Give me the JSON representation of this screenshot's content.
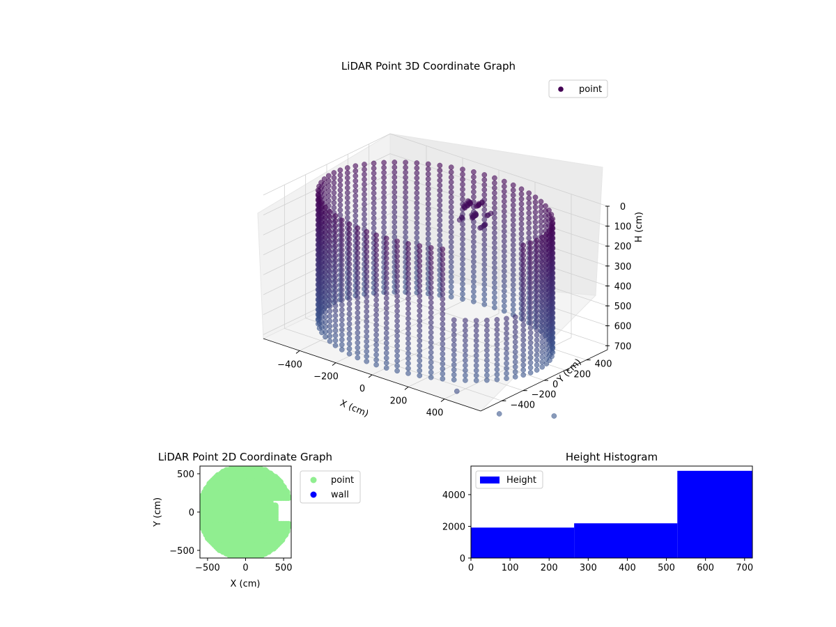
{
  "chart_data": [
    {
      "type": "scatter",
      "projection": "3d",
      "title": "LiDAR Point 3D Coordinate Graph",
      "xlabel": "X (cm)",
      "ylabel": "Y (cm)",
      "zlabel": "H (cm)",
      "xlim": [
        -600,
        600
      ],
      "ylim": [
        -600,
        600
      ],
      "zlim": [
        0,
        720
      ],
      "z_inverted": true,
      "xticks": [
        -400,
        -200,
        0,
        200,
        400
      ],
      "yticks": [
        -400,
        -200,
        0,
        200,
        400
      ],
      "zticks": [
        0,
        100,
        200,
        300,
        400,
        500,
        600,
        700
      ],
      "grid": true,
      "legend_position": "top-right",
      "colormap": "viridis",
      "series": [
        {
          "name": "point",
          "color": "#440154",
          "description_values": {
            "ring_radius": 560,
            "height_min": 0,
            "height_max": 700
          }
        }
      ]
    },
    {
      "type": "scatter",
      "title": "LiDAR Point 2D Coordinate Graph",
      "xlabel": "X (cm)",
      "ylabel": "Y (cm)",
      "xlim": [
        -600,
        600
      ],
      "ylim": [
        -600,
        600
      ],
      "xticks": [
        -500,
        0,
        500
      ],
      "yticks": [
        -500,
        0,
        500
      ],
      "legend_position": "outside-right",
      "series": [
        {
          "name": "point",
          "color": "#90ee90"
        },
        {
          "name": "wall",
          "color": "#0000ff"
        }
      ]
    },
    {
      "type": "bar",
      "title": "Height Histogram",
      "xlim": [
        0,
        720
      ],
      "ylim": [
        0,
        5800
      ],
      "xticks": [
        0,
        100,
        200,
        300,
        400,
        500,
        600,
        700
      ],
      "yticks": [
        0,
        2000,
        4000
      ],
      "legend_position": "top-left",
      "series": [
        {
          "name": "Height",
          "color": "#0000ff",
          "bins": [
            {
              "start": 0,
              "end": 264,
              "count": 1920
            },
            {
              "start": 264,
              "end": 528,
              "count": 2190
            },
            {
              "start": 528,
              "end": 720,
              "count": 5500
            }
          ]
        }
      ]
    }
  ]
}
